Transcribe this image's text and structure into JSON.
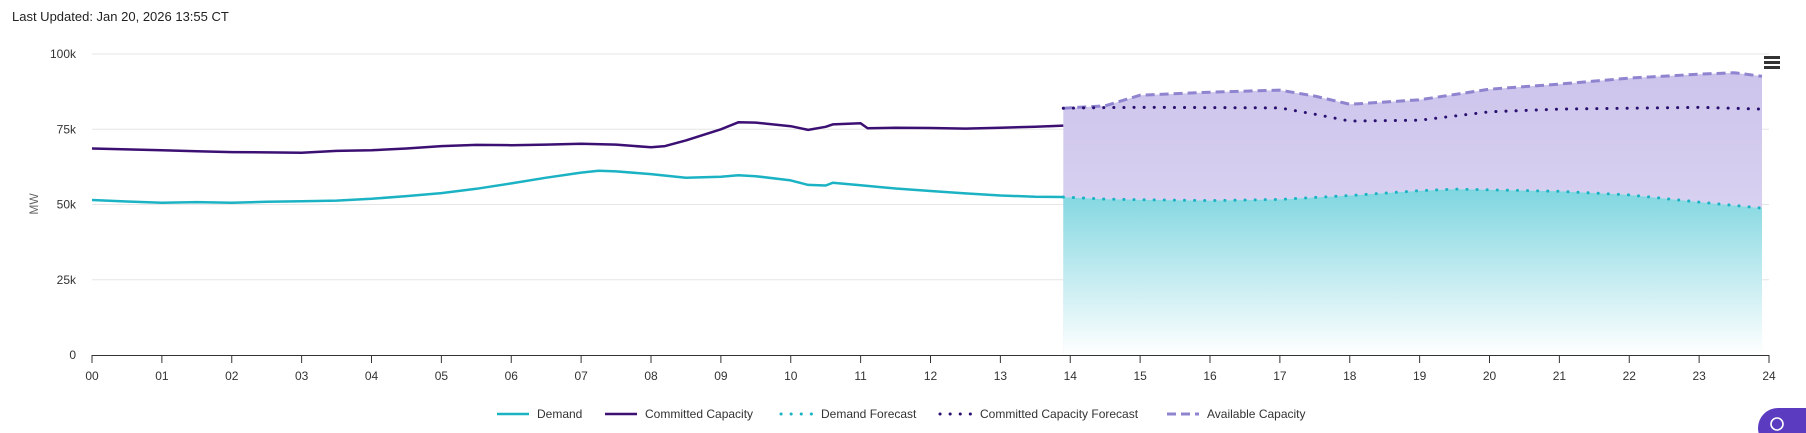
{
  "header": {
    "last_updated": "Last Updated: Jan 20, 2026 13:55 CT"
  },
  "colors": {
    "demand": "#1bb3c4",
    "committed": "#3c0f73",
    "demand_forecast": "#1bb3c4",
    "committed_forecast": "#2a1070",
    "available": "#8f84cf",
    "available_fill": "#d6cff0",
    "demand_fill": "#7fd6e0"
  },
  "chart_data": {
    "type": "line",
    "xlabel": "",
    "ylabel": "MW",
    "xlim": [
      0,
      24
    ],
    "ylim": [
      0,
      100000
    ],
    "x_ticks": [
      "00",
      "01",
      "02",
      "03",
      "04",
      "05",
      "06",
      "07",
      "08",
      "09",
      "10",
      "11",
      "12",
      "13",
      "14",
      "15",
      "16",
      "17",
      "18",
      "19",
      "20",
      "21",
      "22",
      "23",
      "24"
    ],
    "y_ticks": [
      {
        "value": 0,
        "label": "0"
      },
      {
        "value": 25000,
        "label": "25k"
      },
      {
        "value": 50000,
        "label": "50k"
      },
      {
        "value": 75000,
        "label": "75k"
      },
      {
        "value": 100000,
        "label": "100k"
      }
    ],
    "grid": "horizontal",
    "legend_position": "bottom-center",
    "series": [
      {
        "key": "demand",
        "name": "Demand",
        "style": "solid",
        "points": [
          [
            0,
            51500
          ],
          [
            0.5,
            51000
          ],
          [
            1,
            50600
          ],
          [
            1.5,
            50800
          ],
          [
            2,
            50600
          ],
          [
            2.5,
            50900
          ],
          [
            3,
            51100
          ],
          [
            3.5,
            51300
          ],
          [
            4,
            51900
          ],
          [
            4.5,
            52800
          ],
          [
            5,
            53800
          ],
          [
            5.5,
            55200
          ],
          [
            6,
            57000
          ],
          [
            6.5,
            58900
          ],
          [
            7,
            60600
          ],
          [
            7.25,
            61200
          ],
          [
            7.5,
            61000
          ],
          [
            8,
            60100
          ],
          [
            8.5,
            58900
          ],
          [
            9,
            59200
          ],
          [
            9.25,
            59700
          ],
          [
            9.5,
            59400
          ],
          [
            10,
            58000
          ],
          [
            10.25,
            56500
          ],
          [
            10.5,
            56300
          ],
          [
            10.6,
            57200
          ],
          [
            11,
            56400
          ],
          [
            11.5,
            55300
          ],
          [
            12,
            54500
          ],
          [
            12.5,
            53700
          ],
          [
            13,
            53000
          ],
          [
            13.5,
            52600
          ],
          [
            13.9,
            52500
          ]
        ]
      },
      {
        "key": "committed",
        "name": "Committed Capacity",
        "style": "solid",
        "points": [
          [
            0,
            68600
          ],
          [
            0.5,
            68300
          ],
          [
            1,
            68000
          ],
          [
            1.5,
            67700
          ],
          [
            2,
            67400
          ],
          [
            2.5,
            67300
          ],
          [
            3,
            67200
          ],
          [
            3.5,
            67800
          ],
          [
            4,
            68000
          ],
          [
            4.5,
            68600
          ],
          [
            5,
            69400
          ],
          [
            5.5,
            69800
          ],
          [
            6,
            69700
          ],
          [
            6.5,
            69900
          ],
          [
            7,
            70200
          ],
          [
            7.5,
            69900
          ],
          [
            8,
            69000
          ],
          [
            8.2,
            69400
          ],
          [
            8.5,
            71300
          ],
          [
            9,
            75000
          ],
          [
            9.25,
            77300
          ],
          [
            9.5,
            77200
          ],
          [
            10,
            76000
          ],
          [
            10.25,
            74800
          ],
          [
            10.5,
            75800
          ],
          [
            10.6,
            76600
          ],
          [
            11,
            77000
          ],
          [
            11.1,
            75300
          ],
          [
            11.5,
            75500
          ],
          [
            12,
            75400
          ],
          [
            12.5,
            75200
          ],
          [
            13,
            75500
          ],
          [
            13.5,
            75800
          ],
          [
            13.9,
            76200
          ]
        ]
      },
      {
        "key": "demand_forecast",
        "name": "Demand Forecast",
        "style": "dotted",
        "points": [
          [
            13.9,
            52500
          ],
          [
            14.5,
            51800
          ],
          [
            15,
            51600
          ],
          [
            16,
            51300
          ],
          [
            17,
            51700
          ],
          [
            18,
            53000
          ],
          [
            19,
            54600
          ],
          [
            19.5,
            55100
          ],
          [
            20,
            54900
          ],
          [
            21,
            54400
          ],
          [
            22,
            53200
          ],
          [
            23,
            50800
          ],
          [
            23.9,
            48800
          ]
        ]
      },
      {
        "key": "committed_forecast",
        "name": "Committed Capacity Forecast",
        "style": "dotted",
        "points": [
          [
            13.9,
            82000
          ],
          [
            14.5,
            82200
          ],
          [
            15,
            82300
          ],
          [
            16,
            82200
          ],
          [
            17,
            82100
          ],
          [
            17.5,
            80000
          ],
          [
            18,
            77700
          ],
          [
            19,
            78000
          ],
          [
            20,
            80800
          ],
          [
            21,
            81700
          ],
          [
            22,
            82000
          ],
          [
            23,
            82300
          ],
          [
            23.9,
            81700
          ]
        ]
      },
      {
        "key": "available",
        "name": "Available Capacity",
        "style": "dashed",
        "points": [
          [
            13.9,
            82000
          ],
          [
            14.5,
            82800
          ],
          [
            15,
            86300
          ],
          [
            16,
            87300
          ],
          [
            17,
            88000
          ],
          [
            17.5,
            86000
          ],
          [
            18,
            83300
          ],
          [
            19,
            84800
          ],
          [
            20,
            88300
          ],
          [
            21,
            90000
          ],
          [
            22,
            92000
          ],
          [
            23,
            93300
          ],
          [
            23.5,
            93800
          ],
          [
            23.9,
            92600
          ]
        ]
      }
    ]
  }
}
